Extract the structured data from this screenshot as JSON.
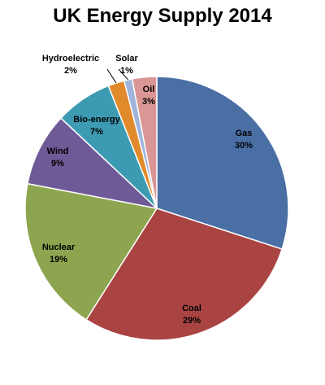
{
  "chart_data": {
    "type": "pie",
    "title": "UK Energy Supply 2014",
    "categories": [
      "Gas",
      "Coal",
      "Nuclear",
      "Wind",
      "Bio-energy",
      "Hydroelectric",
      "Solar",
      "Oil"
    ],
    "values": [
      30,
      29,
      19,
      9,
      7,
      2,
      1,
      3
    ],
    "value_labels": [
      "30%",
      "29%",
      "19%",
      "9%",
      "7%",
      "2%",
      "1%",
      "3%"
    ],
    "colors": [
      "#4A6FA5",
      "#A94442",
      "#8DA54F",
      "#6E5A96",
      "#3C9AB2",
      "#E08A2C",
      "#9FB4DA",
      "#D99694"
    ],
    "start_angle_deg": 0,
    "direction": "clockwise",
    "legend": "none",
    "data_labels": "category and percent"
  }
}
